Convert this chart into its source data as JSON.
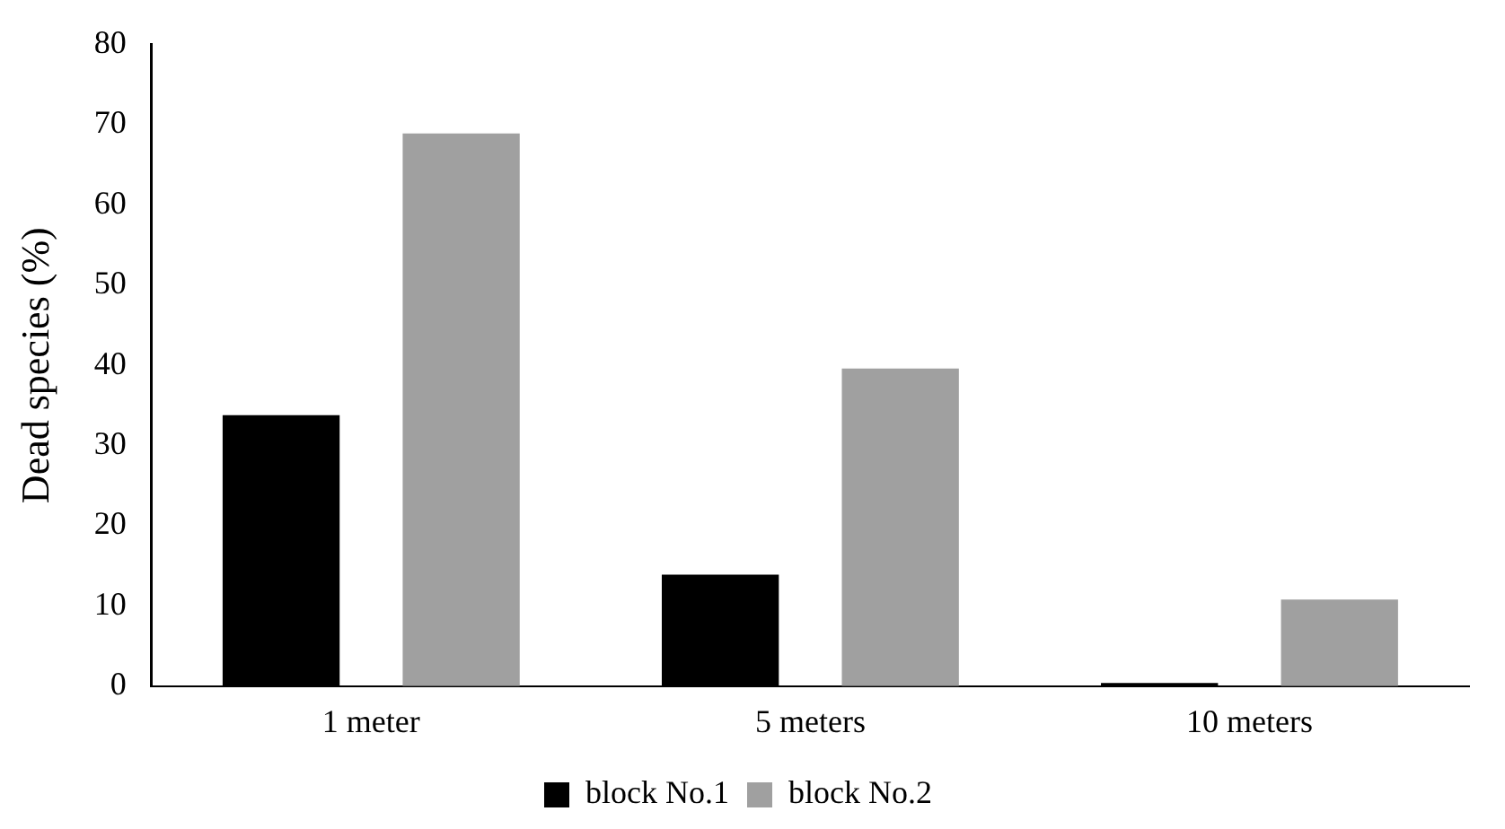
{
  "chart_data": {
    "type": "bar",
    "ylabel": "Dead species (%)",
    "categories": [
      "1 meter",
      "5 meters",
      "10 meters"
    ],
    "series": [
      {
        "name": "block No.1",
        "color": "#000000",
        "values": [
          33.8,
          13.9,
          0.4
        ]
      },
      {
        "name": "block No.2",
        "color": "#a0a0a0",
        "values": [
          68.9,
          39.6,
          10.8
        ]
      }
    ],
    "ylim": [
      0,
      80
    ],
    "yticks": [
      0,
      10,
      20,
      30,
      40,
      50,
      60,
      70,
      80
    ],
    "grid": false,
    "legend": "bottom"
  }
}
